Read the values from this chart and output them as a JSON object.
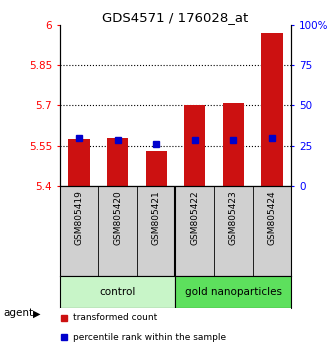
{
  "title": "GDS4571 / 176028_at",
  "samples": [
    "GSM805419",
    "GSM805420",
    "GSM805421",
    "GSM805422",
    "GSM805423",
    "GSM805424"
  ],
  "groups": [
    "control",
    "control",
    "control",
    "gold nanoparticles",
    "gold nanoparticles",
    "gold nanoparticles"
  ],
  "group_labels": [
    "control",
    "gold nanoparticles"
  ],
  "control_color": "#c8f5c8",
  "gold_color": "#5de05d",
  "sample_bg": "#d0d0d0",
  "bar_bottom": 5.4,
  "red_tops": [
    5.575,
    5.58,
    5.528,
    5.7,
    5.707,
    5.97
  ],
  "blue_values": [
    5.578,
    5.572,
    5.555,
    5.57,
    5.57,
    5.58
  ],
  "ylim_left": [
    5.4,
    6.0
  ],
  "ylim_right": [
    0,
    100
  ],
  "yticks_left": [
    5.4,
    5.55,
    5.7,
    5.85,
    6.0
  ],
  "ytick_labels_left": [
    "5.4",
    "5.55",
    "5.7",
    "5.85",
    "6"
  ],
  "yticks_right": [
    0,
    25,
    50,
    75,
    100
  ],
  "ytick_labels_right": [
    "0",
    "25",
    "50",
    "75",
    "100%"
  ],
  "hlines": [
    5.55,
    5.7,
    5.85
  ],
  "bar_width": 0.55,
  "bar_color": "#cc1111",
  "blue_color": "#0000cc",
  "blue_size": 5,
  "legend_items": [
    "transformed count",
    "percentile rank within the sample"
  ],
  "background_color": "#ffffff"
}
